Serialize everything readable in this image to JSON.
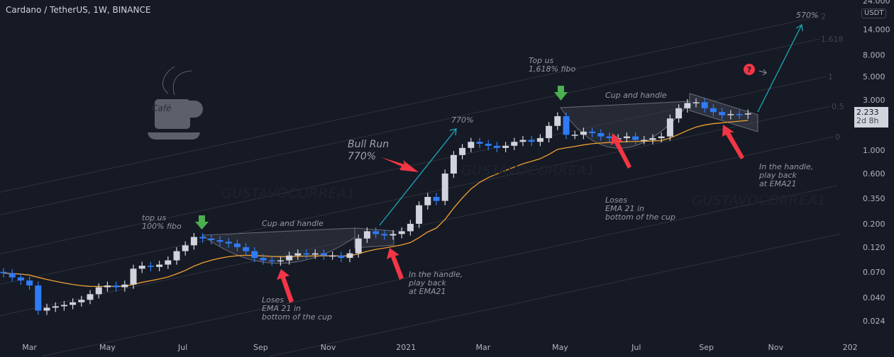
{
  "header": {
    "title": "Cardano / TetherUS, 1W, BINANCE"
  },
  "price_axis": {
    "currency": "USDT",
    "last_price": "2.233",
    "countdown": "2d 8h"
  },
  "logo": {
    "text": "Café"
  },
  "watermark": "GUSTAVOCORREA1",
  "annotations": {
    "bull_run": "Bull Run\n770%",
    "top_us_100": "top us\n100% fibo",
    "cup_handle_1": "Cup and handle",
    "loses_1": "Loses\nEMA 21 in\nbottom of the cup",
    "handle_1": "In the handle,\nplay back\nat EMA21",
    "pct_770": "770%",
    "top_us_1618": "Top us\n1,618% fibo",
    "cup_handle_2": "Cup and handle",
    "loses_2": "Loses\nEMA 21 in\nbottom of the cup",
    "handle_2": "In the handle,\nplay back\nat EMA21",
    "pct_570": "570%"
  },
  "colors": {
    "up": "#d1d4dc",
    "down": "#2f7bf5",
    "ema": "#f0a030",
    "arrow_red": "#f23645",
    "arrow_green": "#4caf50",
    "projection": "#1ba8b8",
    "background": "#161a25"
  },
  "chart_data": {
    "type": "candlestick",
    "title": "Cardano / TetherUS, 1W, BINANCE",
    "scale": "log",
    "ylim": [
      0.018,
      24
    ],
    "interval": "1W",
    "closes": [
      0.068,
      0.062,
      0.058,
      0.052,
      0.03,
      0.032,
      0.033,
      0.034,
      0.036,
      0.038,
      0.043,
      0.05,
      0.052,
      0.05,
      0.053,
      0.075,
      0.08,
      0.078,
      0.082,
      0.09,
      0.11,
      0.125,
      0.15,
      0.145,
      0.14,
      0.135,
      0.13,
      0.12,
      0.11,
      0.095,
      0.09,
      0.088,
      0.09,
      0.1,
      0.105,
      0.102,
      0.105,
      0.1,
      0.1,
      0.095,
      0.105,
      0.145,
      0.17,
      0.16,
      0.155,
      0.16,
      0.17,
      0.2,
      0.3,
      0.36,
      0.33,
      0.6,
      0.9,
      1.05,
      1.2,
      1.15,
      1.1,
      1.05,
      1.1,
      1.2,
      1.25,
      1.2,
      1.3,
      1.7,
      2.1,
      1.4,
      1.4,
      1.5,
      1.45,
      1.35,
      1.3,
      1.3,
      1.35,
      1.25,
      1.25,
      1.3,
      1.35,
      2.0,
      2.5,
      2.8,
      2.85,
      2.5,
      2.3,
      2.15,
      2.2,
      2.18,
      2.233
    ],
    "first_open": 0.07,
    "indicator": {
      "name": "EMA",
      "length": 21
    },
    "y_ticks": [
      "24.000",
      "14.000",
      "8.000",
      "5.000",
      "3.000",
      "1.000",
      "0.600",
      "0.350",
      "0.200",
      "0.120",
      "0.070",
      "0.040",
      "0.024"
    ],
    "x_ticks": [
      {
        "label": "Mar",
        "week": 3
      },
      {
        "label": "May",
        "week": 12
      },
      {
        "label": "Jul",
        "week": 20.7
      },
      {
        "label": "Sep",
        "week": 29.7
      },
      {
        "label": "Nov",
        "week": 37.5
      },
      {
        "label": "2021",
        "week": 46.5
      },
      {
        "label": "Mar",
        "week": 55.4
      },
      {
        "label": "May",
        "week": 64.3
      },
      {
        "label": "Jul",
        "week": 73.1
      },
      {
        "label": "Sep",
        "week": 81.2
      },
      {
        "label": "Nov",
        "week": 89.2
      },
      {
        "label": "202",
        "week": 97.8
      }
    ],
    "fib_levels": [
      "2",
      "1.618",
      "1",
      "0.5",
      "0"
    ]
  }
}
